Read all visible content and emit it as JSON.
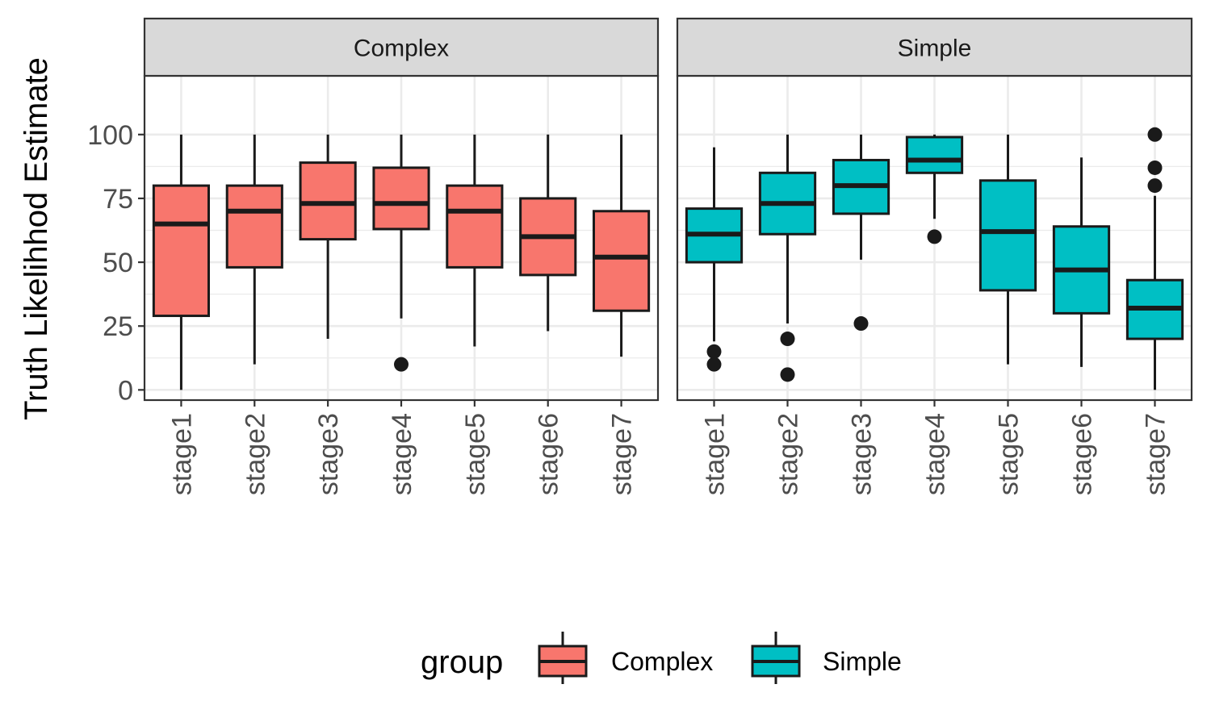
{
  "chart_data": {
    "type": "boxplot",
    "ylabel": "Truth Likelihhod Estimate",
    "xlabel": "",
    "ylim": [
      -4,
      123
    ],
    "yticks": [
      0,
      25,
      50,
      75,
      100
    ],
    "categories": [
      "stage1",
      "stage2",
      "stage3",
      "stage4",
      "stage5",
      "stage6",
      "stage7"
    ],
    "grid": true,
    "legend": {
      "title": "group",
      "position": "bottom",
      "entries": [
        "Complex",
        "Simple"
      ]
    },
    "colors": {
      "Complex": "#F8766D",
      "Simple": "#00BFC4",
      "outline": "#1a1a1a",
      "strip": "#d9d9d9",
      "grid": "#ebebeb"
    },
    "panels": [
      {
        "label": "Complex",
        "fill": "#F8766D",
        "boxes": [
          {
            "category": "stage1",
            "min": 0,
            "q1": 29,
            "median": 65,
            "q3": 80,
            "max": 100,
            "outliers": []
          },
          {
            "category": "stage2",
            "min": 10,
            "q1": 48,
            "median": 70,
            "q3": 80,
            "max": 100,
            "outliers": []
          },
          {
            "category": "stage3",
            "min": 20,
            "q1": 59,
            "median": 73,
            "q3": 89,
            "max": 100,
            "outliers": []
          },
          {
            "category": "stage4",
            "min": 28,
            "q1": 63,
            "median": 73,
            "q3": 87,
            "max": 100,
            "outliers": [
              10
            ]
          },
          {
            "category": "stage5",
            "min": 17,
            "q1": 48,
            "median": 70,
            "q3": 80,
            "max": 100,
            "outliers": []
          },
          {
            "category": "stage6",
            "min": 23,
            "q1": 45,
            "median": 60,
            "q3": 75,
            "max": 100,
            "outliers": []
          },
          {
            "category": "stage7",
            "min": 13,
            "q1": 31,
            "median": 52,
            "q3": 70,
            "max": 100,
            "outliers": []
          }
        ]
      },
      {
        "label": "Simple",
        "fill": "#00BFC4",
        "boxes": [
          {
            "category": "stage1",
            "min": 19,
            "q1": 50,
            "median": 61,
            "q3": 71,
            "max": 95,
            "outliers": [
              10,
              15
            ]
          },
          {
            "category": "stage2",
            "min": 26,
            "q1": 61,
            "median": 73,
            "q3": 85,
            "max": 100,
            "outliers": [
              6,
              20
            ]
          },
          {
            "category": "stage3",
            "min": 51,
            "q1": 69,
            "median": 80,
            "q3": 90,
            "max": 100,
            "outliers": [
              26
            ]
          },
          {
            "category": "stage4",
            "min": 67,
            "q1": 85,
            "median": 90,
            "q3": 99,
            "max": 100,
            "outliers": [
              60
            ]
          },
          {
            "category": "stage5",
            "min": 10,
            "q1": 39,
            "median": 62,
            "q3": 82,
            "max": 100,
            "outliers": []
          },
          {
            "category": "stage6",
            "min": 9,
            "q1": 30,
            "median": 47,
            "q3": 64,
            "max": 91,
            "outliers": []
          },
          {
            "category": "stage7",
            "min": 0,
            "q1": 20,
            "median": 32,
            "q3": 43,
            "max": 76,
            "outliers": [
              80,
              87,
              100
            ]
          }
        ]
      }
    ]
  }
}
